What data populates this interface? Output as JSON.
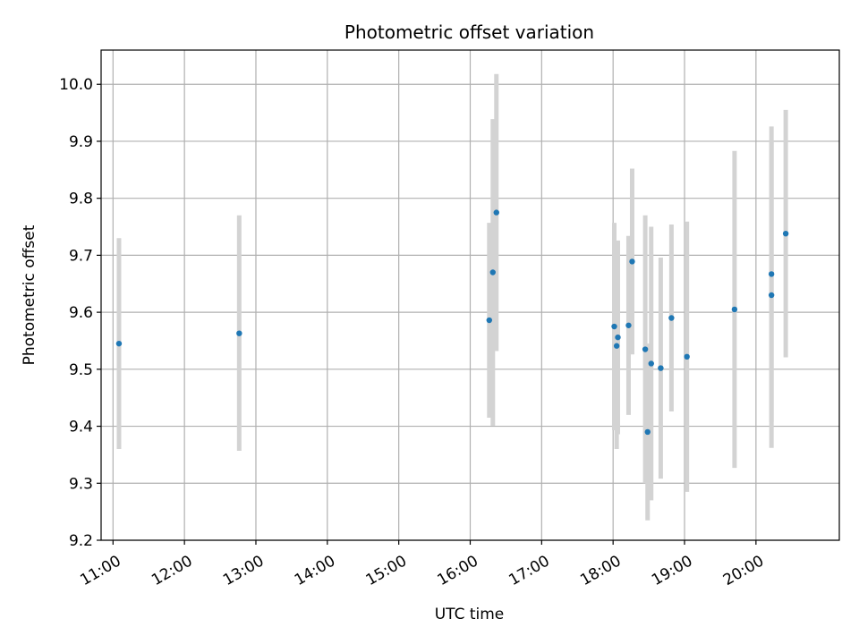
{
  "chart_data": {
    "type": "scatter",
    "title": "Photometric offset variation",
    "xlabel": "UTC time",
    "ylabel": "Photometric offset",
    "xlim": [
      "10:50",
      "21:10"
    ],
    "ylim": [
      9.2,
      10.06
    ],
    "grid": true,
    "x_ticks": [
      "11:00",
      "12:00",
      "13:00",
      "14:00",
      "15:00",
      "16:00",
      "17:00",
      "18:00",
      "19:00",
      "20:00"
    ],
    "y_ticks": [
      "9.2",
      "9.3",
      "9.4",
      "9.5",
      "9.6",
      "9.7",
      "9.8",
      "9.9",
      "10.0"
    ],
    "colors": {
      "marker": "#1f77b4",
      "error_bar": "#d3d3d3",
      "grid": "#b0b0b0"
    },
    "series": [
      {
        "points": [
          {
            "x": "11:05",
            "y": 9.545,
            "lo": 9.36,
            "hi": 9.73
          },
          {
            "x": "12:46",
            "y": 9.563,
            "lo": 9.357,
            "hi": 9.77
          },
          {
            "x": "16:16",
            "y": 9.586,
            "lo": 9.415,
            "hi": 9.757
          },
          {
            "x": "16:19",
            "y": 9.67,
            "lo": 9.401,
            "hi": 9.939
          },
          {
            "x": "16:22",
            "y": 9.775,
            "lo": 9.532,
            "hi": 10.018
          },
          {
            "x": "18:01",
            "y": 9.575,
            "lo": 9.393,
            "hi": 9.757
          },
          {
            "x": "18:03",
            "y": 9.541,
            "lo": 9.36,
            "hi": 9.722
          },
          {
            "x": "18:04",
            "y": 9.556,
            "lo": 9.386,
            "hi": 9.726
          },
          {
            "x": "18:13",
            "y": 9.577,
            "lo": 9.42,
            "hi": 9.734
          },
          {
            "x": "18:16",
            "y": 9.689,
            "lo": 9.526,
            "hi": 9.852
          },
          {
            "x": "18:27",
            "y": 9.535,
            "lo": 9.3,
            "hi": 9.77
          },
          {
            "x": "18:29",
            "y": 9.39,
            "lo": 9.235,
            "hi": 9.545
          },
          {
            "x": "18:32",
            "y": 9.51,
            "lo": 9.27,
            "hi": 9.75
          },
          {
            "x": "18:40",
            "y": 9.502,
            "lo": 9.308,
            "hi": 9.696
          },
          {
            "x": "18:49",
            "y": 9.59,
            "lo": 9.426,
            "hi": 9.754
          },
          {
            "x": "19:02",
            "y": 9.522,
            "lo": 9.285,
            "hi": 9.759
          },
          {
            "x": "19:42",
            "y": 9.605,
            "lo": 9.327,
            "hi": 9.883
          },
          {
            "x": "20:13",
            "y": 9.63,
            "lo": 9.362,
            "hi": 9.898
          },
          {
            "x": "20:13",
            "y": 9.667,
            "lo": 9.408,
            "hi": 9.926
          },
          {
            "x": "20:25",
            "y": 9.738,
            "lo": 9.521,
            "hi": 9.955
          }
        ]
      }
    ]
  }
}
